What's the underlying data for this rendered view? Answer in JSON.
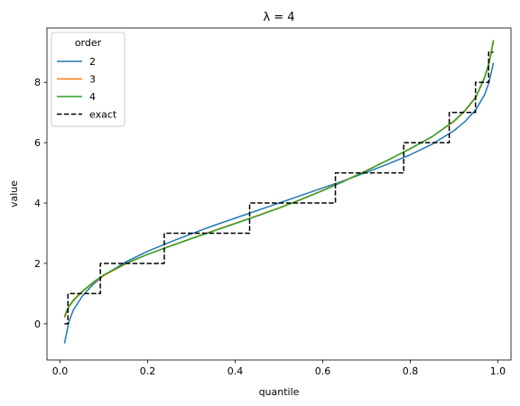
{
  "chart_data": {
    "type": "line",
    "title": "λ = 4",
    "xlabel": "quantile",
    "ylabel": "value",
    "xlim": [
      -0.03,
      1.03
    ],
    "ylim": [
      -1.2,
      9.8
    ],
    "xticks": [
      0.0,
      0.2,
      0.4,
      0.6,
      0.8,
      1.0
    ],
    "xtick_labels": [
      "0.0",
      "0.2",
      "0.4",
      "0.6",
      "0.8",
      "1.0"
    ],
    "yticks": [
      0,
      2,
      4,
      6,
      8
    ],
    "ytick_labels": [
      "0",
      "2",
      "4",
      "6",
      "8"
    ],
    "grid": false,
    "legend": {
      "title": "order",
      "position": "top-left"
    },
    "series": [
      {
        "name": "2",
        "color": "#1f77b4",
        "style": "solid",
        "x": [
          0.01,
          0.02,
          0.03,
          0.05,
          0.075,
          0.1,
          0.15,
          0.2,
          0.25,
          0.3,
          0.35,
          0.4,
          0.45,
          0.5,
          0.55,
          0.6,
          0.65,
          0.7,
          0.75,
          0.8,
          0.85,
          0.9,
          0.925,
          0.95,
          0.97,
          0.98,
          0.99
        ],
        "y": [
          -0.65,
          0.05,
          0.45,
          0.9,
          1.3,
          1.6,
          2.05,
          2.4,
          2.7,
          2.98,
          3.25,
          3.5,
          3.75,
          4.0,
          4.25,
          4.5,
          4.75,
          5.02,
          5.3,
          5.6,
          5.95,
          6.4,
          6.7,
          7.1,
          7.6,
          8.0,
          8.65
        ]
      },
      {
        "name": "3",
        "color": "#ff7f0e",
        "style": "solid",
        "x": [
          0.01,
          0.02,
          0.03,
          0.05,
          0.075,
          0.1,
          0.15,
          0.2,
          0.25,
          0.3,
          0.35,
          0.4,
          0.45,
          0.5,
          0.55,
          0.6,
          0.65,
          0.7,
          0.75,
          0.8,
          0.85,
          0.9,
          0.925,
          0.95,
          0.97,
          0.98,
          0.99
        ],
        "y": [
          0.2,
          0.55,
          0.75,
          1.05,
          1.35,
          1.6,
          1.98,
          2.3,
          2.57,
          2.83,
          3.08,
          3.33,
          3.58,
          3.84,
          4.12,
          4.42,
          4.74,
          5.08,
          5.43,
          5.8,
          6.2,
          6.7,
          7.05,
          7.5,
          8.15,
          8.6,
          9.35
        ]
      },
      {
        "name": "4",
        "color": "#2ca02c",
        "style": "solid",
        "x": [
          0.01,
          0.02,
          0.03,
          0.05,
          0.075,
          0.1,
          0.15,
          0.2,
          0.25,
          0.3,
          0.35,
          0.4,
          0.45,
          0.5,
          0.55,
          0.6,
          0.65,
          0.7,
          0.75,
          0.8,
          0.85,
          0.9,
          0.925,
          0.95,
          0.97,
          0.98,
          0.99
        ],
        "y": [
          0.25,
          0.58,
          0.78,
          1.07,
          1.37,
          1.62,
          2.0,
          2.3,
          2.56,
          2.82,
          3.07,
          3.32,
          3.57,
          3.83,
          4.11,
          4.41,
          4.73,
          5.07,
          5.43,
          5.8,
          6.2,
          6.72,
          7.07,
          7.52,
          8.18,
          8.65,
          9.4
        ]
      },
      {
        "name": "exact",
        "color": "#000000",
        "style": "dashed",
        "x": [
          0.01,
          0.018,
          0.018,
          0.092,
          0.092,
          0.238,
          0.238,
          0.433,
          0.433,
          0.629,
          0.629,
          0.785,
          0.785,
          0.889,
          0.889,
          0.949,
          0.949,
          0.979,
          0.979,
          0.99
        ],
        "y": [
          0,
          0,
          1,
          1,
          2,
          2,
          3,
          3,
          4,
          4,
          5,
          5,
          6,
          6,
          7,
          7,
          8,
          8,
          9,
          9
        ]
      }
    ]
  }
}
